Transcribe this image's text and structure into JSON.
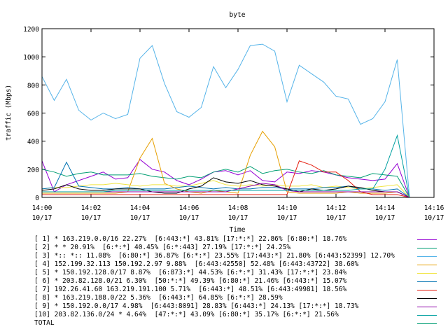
{
  "chart_data": {
    "type": "line",
    "title": "byte",
    "xlabel": "Time",
    "ylabel": "traffic (Mbps)",
    "ylim": [
      0,
      1200
    ],
    "yticks": [
      0,
      200,
      400,
      600,
      800,
      1000,
      1200
    ],
    "xlim": [
      "14:00",
      "14:16"
    ],
    "xticks": [
      {
        "t": "14:00",
        "d": "10/17"
      },
      {
        "t": "14:02",
        "d": "10/17"
      },
      {
        "t": "14:04",
        "d": "10/17"
      },
      {
        "t": "14:06",
        "d": "10/17"
      },
      {
        "t": "14:08",
        "d": "10/17"
      },
      {
        "t": "14:10",
        "d": "10/17"
      },
      {
        "t": "14:12",
        "d": "10/17"
      },
      {
        "t": "14:14",
        "d": "10/17"
      },
      {
        "t": "14:16",
        "d": "10/17"
      }
    ],
    "x": [
      "14:00",
      "14:00:30",
      "14:01",
      "14:01:30",
      "14:02",
      "14:02:30",
      "14:03",
      "14:03:30",
      "14:04",
      "14:04:30",
      "14:05",
      "14:05:30",
      "14:06",
      "14:06:30",
      "14:07",
      "14:07:30",
      "14:08",
      "14:08:30",
      "14:09",
      "14:09:30",
      "14:10",
      "14:10:30",
      "14:11",
      "14:11:30",
      "14:12",
      "14:12:30",
      "14:13",
      "14:13:30",
      "14:14",
      "14:14:30",
      "14:15"
    ],
    "series": [
      {
        "name": "[ 1] * 163.219.0.0/16 22.27%  [6:443:*] 43.81% [17:*:*] 22.86% [6:80:*] 18.76%",
        "color": "#9400d3",
        "values": [
          260,
          40,
          90,
          120,
          150,
          180,
          130,
          140,
          270,
          200,
          180,
          120,
          90,
          130,
          180,
          190,
          160,
          190,
          120,
          110,
          180,
          170,
          190,
          180,
          160,
          140,
          130,
          120,
          130,
          240,
          0
        ]
      },
      {
        "name": "[ 2] * * 20.91%  [6:*:*] 40.45% [6:*:443] 27.19% [17:*:*] 24.25%",
        "color": "#009e73",
        "values": [
          200,
          180,
          150,
          170,
          180,
          160,
          160,
          160,
          170,
          150,
          140,
          130,
          150,
          140,
          180,
          200,
          180,
          220,
          170,
          190,
          200,
          180,
          170,
          190,
          160,
          150,
          140,
          170,
          160,
          150,
          0
        ]
      },
      {
        "name": "[ 3] *:: *:: 11.08%  [6:80:*] 36.87% [6:*:*] 23.55% [17:443:*] 21.80% [6:443:52399] 12.70%",
        "color": "#56b4e9",
        "values": [
          860,
          690,
          840,
          620,
          550,
          600,
          560,
          590,
          990,
          1080,
          810,
          610,
          570,
          640,
          930,
          780,
          910,
          1080,
          1090,
          1040,
          680,
          940,
          880,
          820,
          720,
          700,
          520,
          560,
          680,
          980,
          0
        ]
      },
      {
        "name": "[ 4] 152.199.32.113 150.192.2.97 9.88%  [6:443:42550] 52.48% [6:443:43722] 38.60%",
        "color": "#e69f00",
        "values": [
          30,
          30,
          30,
          30,
          30,
          30,
          30,
          40,
          280,
          420,
          100,
          60,
          40,
          30,
          50,
          40,
          30,
          300,
          470,
          360,
          40,
          30,
          30,
          30,
          30,
          40,
          30,
          30,
          30,
          40,
          0
        ]
      },
      {
        "name": "[ 5] * 150.192.128.0/17 8.87%  [6:873:*] 44.53% [6:*:*] 31.43% [17:*:*] 23.84%",
        "color": "#f0e442",
        "values": [
          60,
          70,
          70,
          80,
          90,
          90,
          100,
          90,
          80,
          90,
          90,
          80,
          80,
          100,
          120,
          90,
          80,
          90,
          80,
          90,
          80,
          80,
          90,
          70,
          80,
          70,
          60,
          70,
          80,
          90,
          0
        ]
      },
      {
        "name": "[ 6] * 203.82.128.0/21 6.30%  [50:*:*] 49.39% [6:80:*] 21.46% [6:443:*] 15.07%",
        "color": "#0072b2",
        "values": [
          60,
          70,
          250,
          80,
          70,
          60,
          60,
          70,
          60,
          60,
          60,
          70,
          80,
          70,
          60,
          70,
          60,
          60,
          70,
          70,
          60,
          60,
          60,
          70,
          70,
          80,
          60,
          60,
          50,
          60,
          0
        ]
      },
      {
        "name": "[ 7] 192.26.41.60 163.219.191.100 5.71%  [6:443:*] 48.51% [6:443:49981] 18.56%",
        "color": "#e51e10",
        "values": [
          20,
          20,
          20,
          20,
          20,
          20,
          20,
          20,
          20,
          20,
          20,
          20,
          20,
          20,
          20,
          20,
          20,
          20,
          20,
          20,
          20,
          260,
          230,
          180,
          180,
          120,
          40,
          20,
          20,
          20,
          0
        ]
      },
      {
        "name": "[ 8] * 163.219.188.0/22 5.36%  [6:443:*] 64.85% [6:*:*] 28.59%",
        "color": "#000000",
        "values": [
          50,
          60,
          90,
          60,
          50,
          50,
          60,
          60,
          60,
          40,
          30,
          30,
          60,
          80,
          140,
          110,
          100,
          120,
          90,
          80,
          60,
          40,
          60,
          50,
          60,
          80,
          70,
          50,
          40,
          40,
          0
        ]
      },
      {
        "name": "[ 9] * 150.192.0.0/17 4.98%  [6:443:8091] 28.83% [6:443:*] 24.13% [17:*:*] 18.73%",
        "color": "#8b00a8",
        "values": [
          40,
          40,
          40,
          40,
          40,
          40,
          40,
          40,
          40,
          40,
          40,
          40,
          40,
          40,
          40,
          40,
          60,
          80,
          100,
          90,
          50,
          40,
          40,
          40,
          40,
          40,
          40,
          40,
          40,
          40,
          0
        ]
      },
      {
        "name": "[10] 203.82.136.0/24 * 4.64%  [47:*:*] 43.09% [6:80:*] 35.17% [6:*:*] 21.56%",
        "color": "#00a0a0",
        "values": [
          40,
          40,
          40,
          40,
          40,
          40,
          50,
          50,
          50,
          50,
          50,
          50,
          50,
          50,
          50,
          50,
          50,
          50,
          50,
          50,
          50,
          50,
          50,
          50,
          50,
          50,
          60,
          60,
          200,
          440,
          0
        ]
      },
      {
        "name": "TOTAL",
        "color": "#009e73",
        "values": null
      }
    ]
  }
}
